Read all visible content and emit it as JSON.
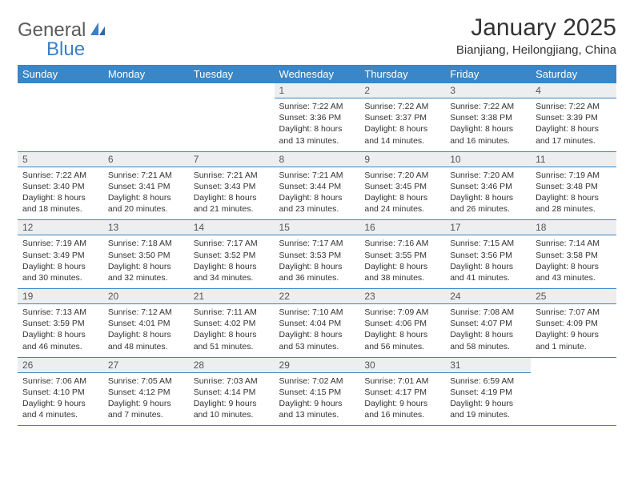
{
  "logo": {
    "part1": "General",
    "part2": "Blue"
  },
  "title": "January 2025",
  "location": "Bianjiang, Heilongjiang, China",
  "colors": {
    "header_bg": "#3b86c6",
    "header_text": "#ffffff",
    "daynum_bg": "#eceef0",
    "row_border": "#3b86c6",
    "logo_gray": "#5a5a5a",
    "logo_blue": "#3b7fc4"
  },
  "weekdays": [
    "Sunday",
    "Monday",
    "Tuesday",
    "Wednesday",
    "Thursday",
    "Friday",
    "Saturday"
  ],
  "weeks": [
    [
      null,
      null,
      null,
      {
        "d": "1",
        "sr": "7:22 AM",
        "ss": "3:36 PM",
        "dl": "8 hours and 13 minutes."
      },
      {
        "d": "2",
        "sr": "7:22 AM",
        "ss": "3:37 PM",
        "dl": "8 hours and 14 minutes."
      },
      {
        "d": "3",
        "sr": "7:22 AM",
        "ss": "3:38 PM",
        "dl": "8 hours and 16 minutes."
      },
      {
        "d": "4",
        "sr": "7:22 AM",
        "ss": "3:39 PM",
        "dl": "8 hours and 17 minutes."
      }
    ],
    [
      {
        "d": "5",
        "sr": "7:22 AM",
        "ss": "3:40 PM",
        "dl": "8 hours and 18 minutes."
      },
      {
        "d": "6",
        "sr": "7:21 AM",
        "ss": "3:41 PM",
        "dl": "8 hours and 20 minutes."
      },
      {
        "d": "7",
        "sr": "7:21 AM",
        "ss": "3:43 PM",
        "dl": "8 hours and 21 minutes."
      },
      {
        "d": "8",
        "sr": "7:21 AM",
        "ss": "3:44 PM",
        "dl": "8 hours and 23 minutes."
      },
      {
        "d": "9",
        "sr": "7:20 AM",
        "ss": "3:45 PM",
        "dl": "8 hours and 24 minutes."
      },
      {
        "d": "10",
        "sr": "7:20 AM",
        "ss": "3:46 PM",
        "dl": "8 hours and 26 minutes."
      },
      {
        "d": "11",
        "sr": "7:19 AM",
        "ss": "3:48 PM",
        "dl": "8 hours and 28 minutes."
      }
    ],
    [
      {
        "d": "12",
        "sr": "7:19 AM",
        "ss": "3:49 PM",
        "dl": "8 hours and 30 minutes."
      },
      {
        "d": "13",
        "sr": "7:18 AM",
        "ss": "3:50 PM",
        "dl": "8 hours and 32 minutes."
      },
      {
        "d": "14",
        "sr": "7:17 AM",
        "ss": "3:52 PM",
        "dl": "8 hours and 34 minutes."
      },
      {
        "d": "15",
        "sr": "7:17 AM",
        "ss": "3:53 PM",
        "dl": "8 hours and 36 minutes."
      },
      {
        "d": "16",
        "sr": "7:16 AM",
        "ss": "3:55 PM",
        "dl": "8 hours and 38 minutes."
      },
      {
        "d": "17",
        "sr": "7:15 AM",
        "ss": "3:56 PM",
        "dl": "8 hours and 41 minutes."
      },
      {
        "d": "18",
        "sr": "7:14 AM",
        "ss": "3:58 PM",
        "dl": "8 hours and 43 minutes."
      }
    ],
    [
      {
        "d": "19",
        "sr": "7:13 AM",
        "ss": "3:59 PM",
        "dl": "8 hours and 46 minutes."
      },
      {
        "d": "20",
        "sr": "7:12 AM",
        "ss": "4:01 PM",
        "dl": "8 hours and 48 minutes."
      },
      {
        "d": "21",
        "sr": "7:11 AM",
        "ss": "4:02 PM",
        "dl": "8 hours and 51 minutes."
      },
      {
        "d": "22",
        "sr": "7:10 AM",
        "ss": "4:04 PM",
        "dl": "8 hours and 53 minutes."
      },
      {
        "d": "23",
        "sr": "7:09 AM",
        "ss": "4:06 PM",
        "dl": "8 hours and 56 minutes."
      },
      {
        "d": "24",
        "sr": "7:08 AM",
        "ss": "4:07 PM",
        "dl": "8 hours and 58 minutes."
      },
      {
        "d": "25",
        "sr": "7:07 AM",
        "ss": "4:09 PM",
        "dl": "9 hours and 1 minute."
      }
    ],
    [
      {
        "d": "26",
        "sr": "7:06 AM",
        "ss": "4:10 PM",
        "dl": "9 hours and 4 minutes."
      },
      {
        "d": "27",
        "sr": "7:05 AM",
        "ss": "4:12 PM",
        "dl": "9 hours and 7 minutes."
      },
      {
        "d": "28",
        "sr": "7:03 AM",
        "ss": "4:14 PM",
        "dl": "9 hours and 10 minutes."
      },
      {
        "d": "29",
        "sr": "7:02 AM",
        "ss": "4:15 PM",
        "dl": "9 hours and 13 minutes."
      },
      {
        "d": "30",
        "sr": "7:01 AM",
        "ss": "4:17 PM",
        "dl": "9 hours and 16 minutes."
      },
      {
        "d": "31",
        "sr": "6:59 AM",
        "ss": "4:19 PM",
        "dl": "9 hours and 19 minutes."
      },
      null
    ]
  ],
  "labels": {
    "sunrise": "Sunrise: ",
    "sunset": "Sunset: ",
    "daylight": "Daylight: "
  }
}
